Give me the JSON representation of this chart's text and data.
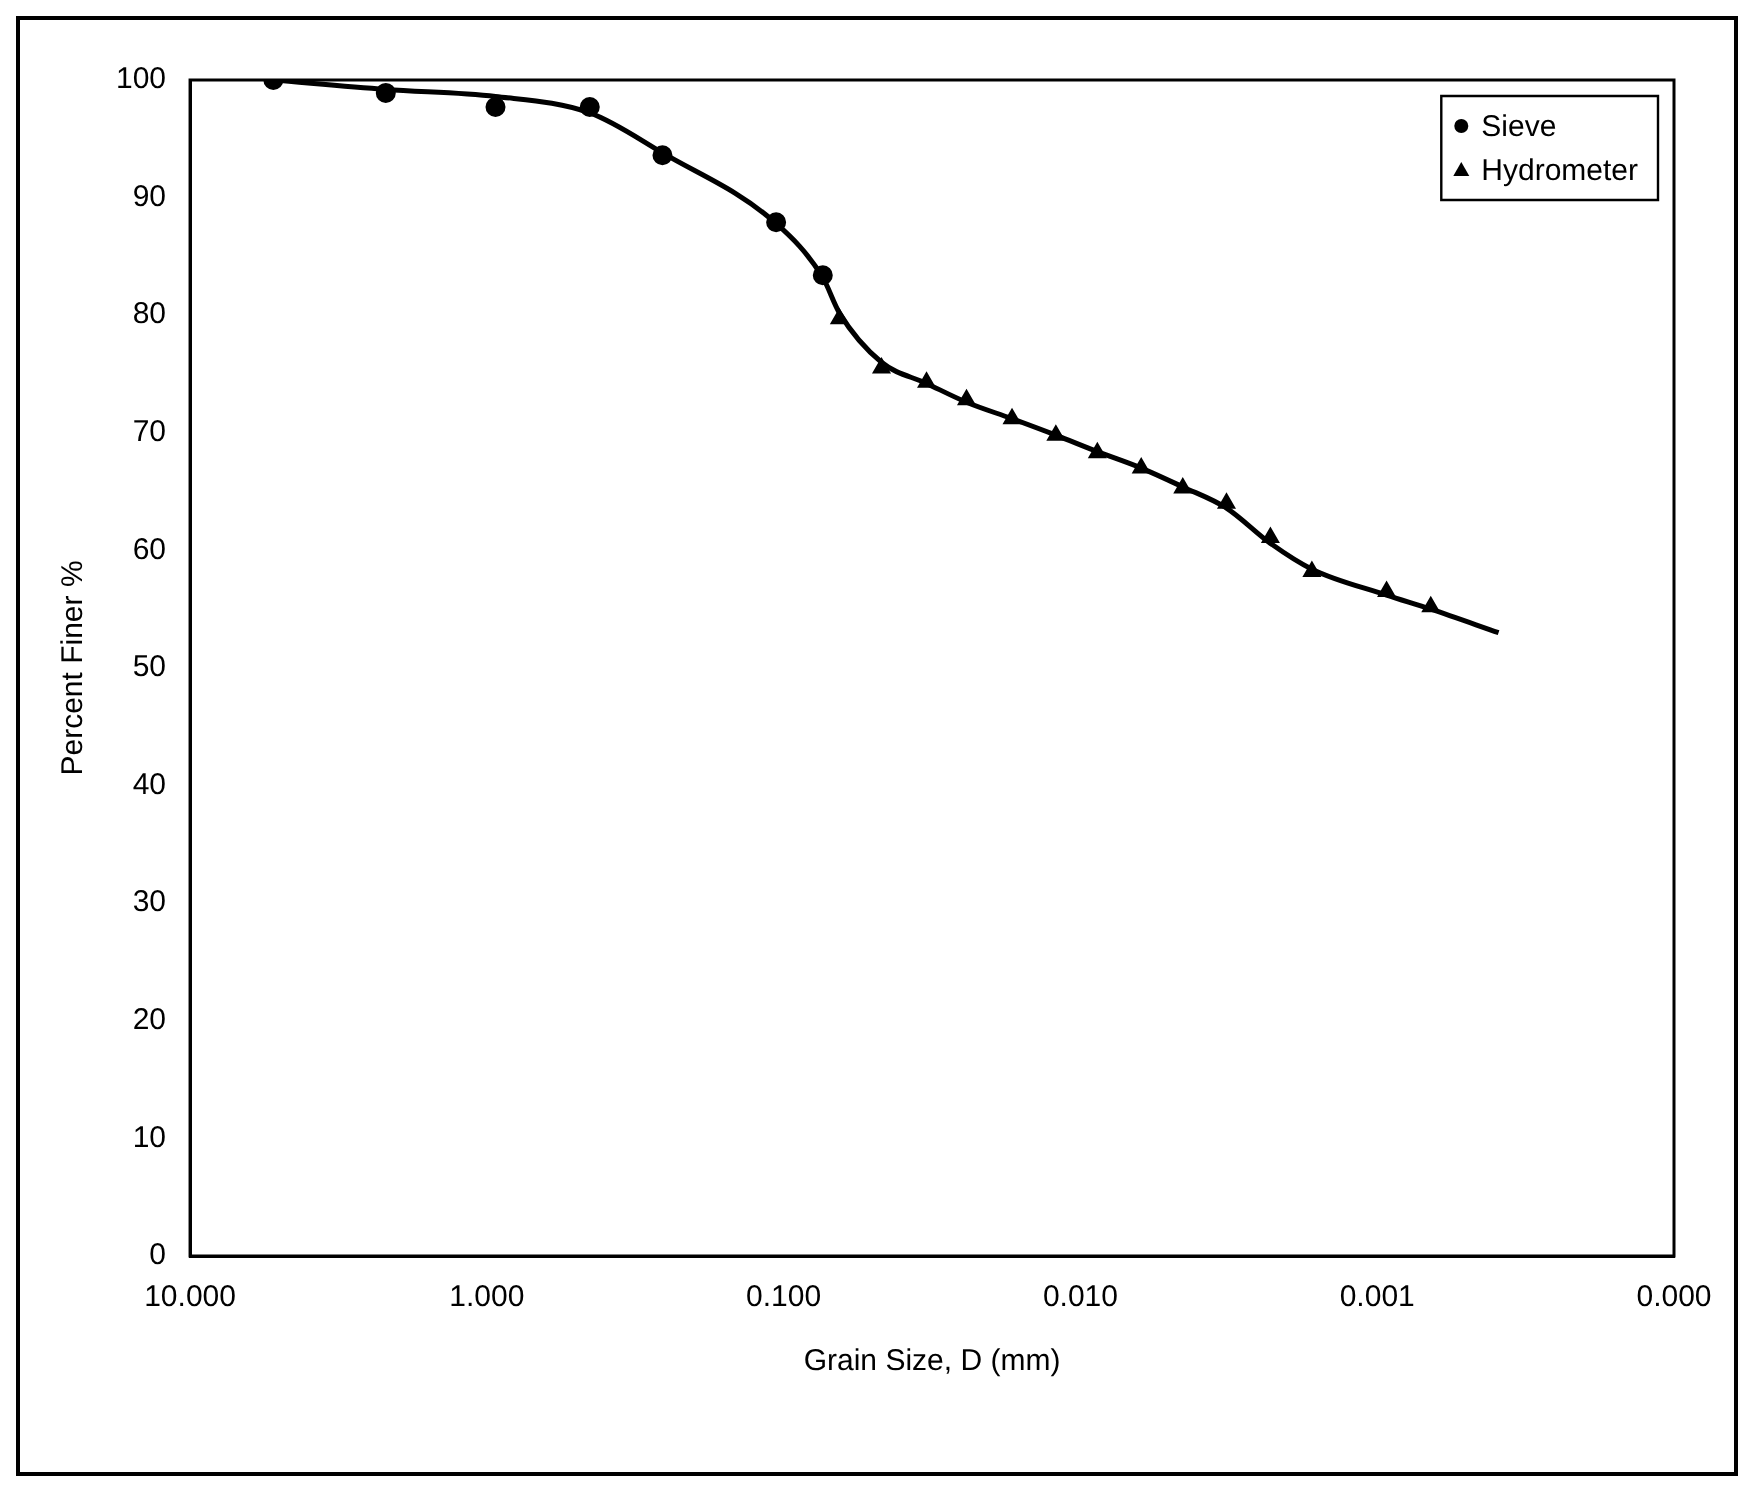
{
  "chart_data": {
    "type": "scatter",
    "xlabel": "Grain Size, D (mm)",
    "ylabel": "Percent Finer %",
    "log": "x",
    "xlim": [
      10,
      0.0001
    ],
    "xticks": [
      {
        "value": 10,
        "label": "10.000"
      },
      {
        "value": 1,
        "label": "1.000"
      },
      {
        "value": 0.1,
        "label": "0.100"
      },
      {
        "value": 0.01,
        "label": "0.010"
      },
      {
        "value": 0.001,
        "label": "0.001"
      },
      {
        "value": 0.0001,
        "label": "0.000"
      }
    ],
    "ylim": [
      0,
      100
    ],
    "yticks": [
      0,
      10,
      20,
      30,
      40,
      50,
      60,
      70,
      80,
      90,
      100
    ],
    "grid": false,
    "legend": "top right",
    "series": [
      {
        "name": "Sieve",
        "marker": "circle",
        "color": "#000000",
        "x": [
          5.24,
          2.19,
          0.935,
          0.45,
          0.256,
          0.106,
          0.0738
        ],
        "values": [
          100,
          98.9,
          97.7,
          97.7,
          93.6,
          87.9,
          83.4
        ]
      },
      {
        "name": "Hydrometer",
        "marker": "triangle",
        "color": "#000000",
        "x": [
          0.0649,
          0.0468,
          0.033,
          0.0242,
          0.017,
          0.0121,
          0.00877,
          0.00624,
          0.00452,
          0.00322,
          0.00229,
          0.00166,
          0.00093,
          0.00066
        ],
        "values": [
          79.7,
          75.5,
          74.3,
          72.8,
          71.2,
          69.8,
          68.3,
          67,
          65.3,
          64,
          61.1,
          58.2,
          56.5,
          55.2
        ]
      },
      {
        "type": "line",
        "marker": "none",
        "line_style": "solid",
        "color": "#000000",
        "x": [
          5.24,
          2.19,
          0.935,
          0.45,
          0.256,
          0.106,
          0.0738,
          0.0649,
          0.0468,
          0.033,
          0.0242,
          0.017,
          0.0121,
          0.00877,
          0.00624,
          0.00452,
          0.00322,
          0.00229,
          0.00166,
          0.00093,
          0.00066,
          0.00039
        ],
        "values": [
          100,
          99.2,
          98.6,
          97.2,
          93.8,
          87.8,
          83.2,
          80.2,
          76,
          74.2,
          72.6,
          71.2,
          69.8,
          68.4,
          67,
          65.4,
          63.6,
          60.6,
          58.4,
          56.2,
          55,
          53
        ]
      }
    ]
  }
}
